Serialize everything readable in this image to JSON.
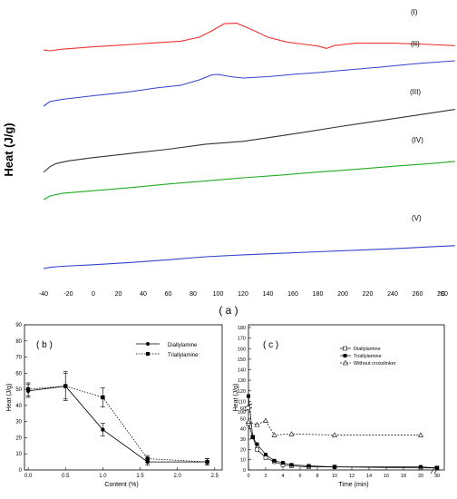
{
  "chart_data": [
    {
      "panel": "a",
      "type": "line",
      "panel_label": "( a )",
      "ylabel": "Heat (J/g)",
      "xunit": "°C",
      "x_ticks": [
        -40,
        -20,
        0,
        20,
        40,
        60,
        80,
        100,
        120,
        140,
        160,
        180,
        200,
        220,
        240,
        260,
        280
      ],
      "grid": false,
      "series": [
        {
          "name": "(I)",
          "color": "#ee3333",
          "x": [
            -40,
            -35,
            -25,
            0,
            30,
            50,
            70,
            85,
            95,
            105,
            115,
            125,
            140,
            155,
            170,
            180,
            187,
            193,
            210,
            240,
            270,
            290
          ],
          "y": [
            0.2,
            0.0,
            0.4,
            1.0,
            1.6,
            2.0,
            2.4,
            3.4,
            5.0,
            6.8,
            6.9,
            5.6,
            3.4,
            2.2,
            1.6,
            1.2,
            0.6,
            1.3,
            1.9,
            1.9,
            1.6,
            1.3
          ]
        },
        {
          "name": "(II)",
          "color": "#3344cc",
          "x": [
            -40,
            -35,
            -25,
            0,
            30,
            50,
            70,
            85,
            95,
            100,
            110,
            120,
            140,
            160,
            180,
            200,
            230,
            260,
            290
          ],
          "y": [
            0.0,
            1.0,
            1.5,
            2.3,
            3.2,
            4.0,
            4.6,
            5.8,
            6.9,
            7.0,
            6.5,
            6.2,
            6.5,
            7.0,
            7.4,
            7.9,
            8.6,
            9.4,
            10.0
          ]
        },
        {
          "name": "(III)",
          "color": "#333333",
          "x": [
            -40,
            -35,
            -30,
            -20,
            0,
            30,
            60,
            90,
            120,
            140,
            170,
            200,
            230,
            260,
            290
          ],
          "y": [
            0.0,
            1.2,
            1.9,
            2.5,
            3.2,
            4.1,
            5.0,
            6.1,
            6.7,
            7.5,
            8.7,
            10.0,
            11.2,
            12.4,
            13.6
          ]
        },
        {
          "name": "(IV)",
          "color": "#22aa22",
          "x": [
            -40,
            -35,
            -25,
            0,
            30,
            60,
            90,
            120,
            150,
            180,
            210,
            240,
            270,
            290
          ],
          "y": [
            0.0,
            0.8,
            1.4,
            2.0,
            2.7,
            3.5,
            4.2,
            4.9,
            5.5,
            6.2,
            6.8,
            7.5,
            8.1,
            8.6
          ]
        },
        {
          "name": "(V)",
          "color": "#3344cc",
          "x": [
            -40,
            -35,
            -25,
            0,
            30,
            60,
            90,
            120,
            150,
            180,
            210,
            240,
            270,
            290
          ],
          "y": [
            0.0,
            0.3,
            0.6,
            1.0,
            1.6,
            2.3,
            3.1,
            3.6,
            4.0,
            4.4,
            4.8,
            5.2,
            5.7,
            6.0
          ]
        }
      ]
    },
    {
      "panel": "b",
      "type": "line",
      "panel_label": "( b )",
      "xlabel": "Content (%)",
      "ylabel": "Heat (J/g)",
      "xlim": [
        -0.05,
        2.6
      ],
      "ylim": [
        0,
        90
      ],
      "x_ticks": [
        "0.0",
        "0.5",
        "1.0",
        "1.5",
        "2.0",
        "2.5"
      ],
      "y_ticks": [
        0,
        10,
        20,
        30,
        40,
        50,
        60,
        70,
        80,
        90
      ],
      "legend_position": "top-right",
      "series": [
        {
          "name": "Diallylamine",
          "marker": "circle-filled",
          "line": "solid",
          "x": [
            0,
            0.5,
            1.0,
            1.6,
            2.4
          ],
          "y": [
            49,
            52,
            25,
            5,
            5
          ],
          "err": [
            4,
            9,
            4,
            2,
            2
          ]
        },
        {
          "name": "Triallylamine",
          "marker": "square-filled",
          "line": "dotted",
          "x": [
            0,
            0.5,
            1.0,
            1.6,
            2.4
          ],
          "y": [
            50,
            52,
            45,
            7,
            5
          ],
          "err": [
            4,
            8,
            6,
            2,
            2
          ]
        }
      ]
    },
    {
      "panel": "c",
      "type": "line",
      "panel_label": "( c )",
      "xlabel": "Time (min)",
      "ylabel": "Heat (J/g)",
      "ylim": [
        0,
        180
      ],
      "x_ticks": [
        0,
        2,
        4,
        6,
        8,
        10,
        12,
        14,
        16,
        18,
        20,
        30
      ],
      "y_ticks_lower": [
        0,
        10,
        20,
        30,
        40,
        50,
        60
      ],
      "y_ticks_upper": [
        100,
        110,
        120,
        130,
        140,
        150,
        160,
        170,
        180
      ],
      "legend_position": "top-right",
      "series": [
        {
          "name": "Diallylamine",
          "marker": "square-open",
          "line": "solid",
          "x": [
            0,
            0.5,
            1,
            2,
            3,
            4,
            5,
            7,
            10,
            20,
            30
          ],
          "y": [
            45,
            32,
            20,
            12,
            8,
            5,
            4,
            3,
            3,
            2,
            2
          ]
        },
        {
          "name": "Triallylamine",
          "marker": "square-filled",
          "line": "solid",
          "x": [
            0,
            0.5,
            1,
            2,
            3,
            4,
            5,
            7,
            10,
            20,
            30
          ],
          "y": [
            115,
            32,
            25,
            15,
            9,
            7,
            5,
            4,
            3,
            3,
            2
          ]
        },
        {
          "name": "Without crosslinker",
          "marker": "triangle-open",
          "line": "dashed",
          "x": [
            0,
            1,
            2,
            3,
            5,
            10,
            20
          ],
          "y": [
            47,
            44,
            48,
            34,
            35,
            34,
            34
          ]
        }
      ]
    }
  ]
}
